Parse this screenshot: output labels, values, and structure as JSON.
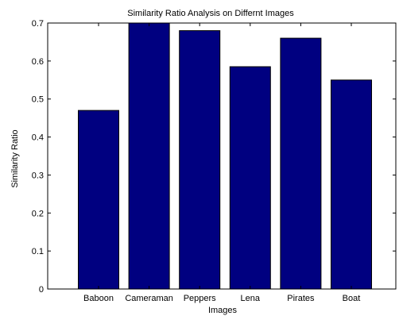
{
  "chart_data": {
    "type": "bar",
    "title": "Similarity Ratio Analysis on Differnt Images",
    "xlabel": "Images",
    "ylabel": "Similarity Ratio",
    "categories": [
      "Baboon",
      "Cameraman",
      "Peppers",
      "Lena",
      "Pirates",
      "Boat"
    ],
    "values": [
      0.47,
      0.7,
      0.68,
      0.585,
      0.66,
      0.55
    ],
    "ylim": [
      0,
      0.7
    ],
    "yticks": [
      "0",
      "0.1",
      "0.2",
      "0.3",
      "0.4",
      "0.5",
      "0.6",
      "0.7"
    ],
    "grid": false,
    "bar_color": "#000080",
    "axis_color": "#000000"
  }
}
